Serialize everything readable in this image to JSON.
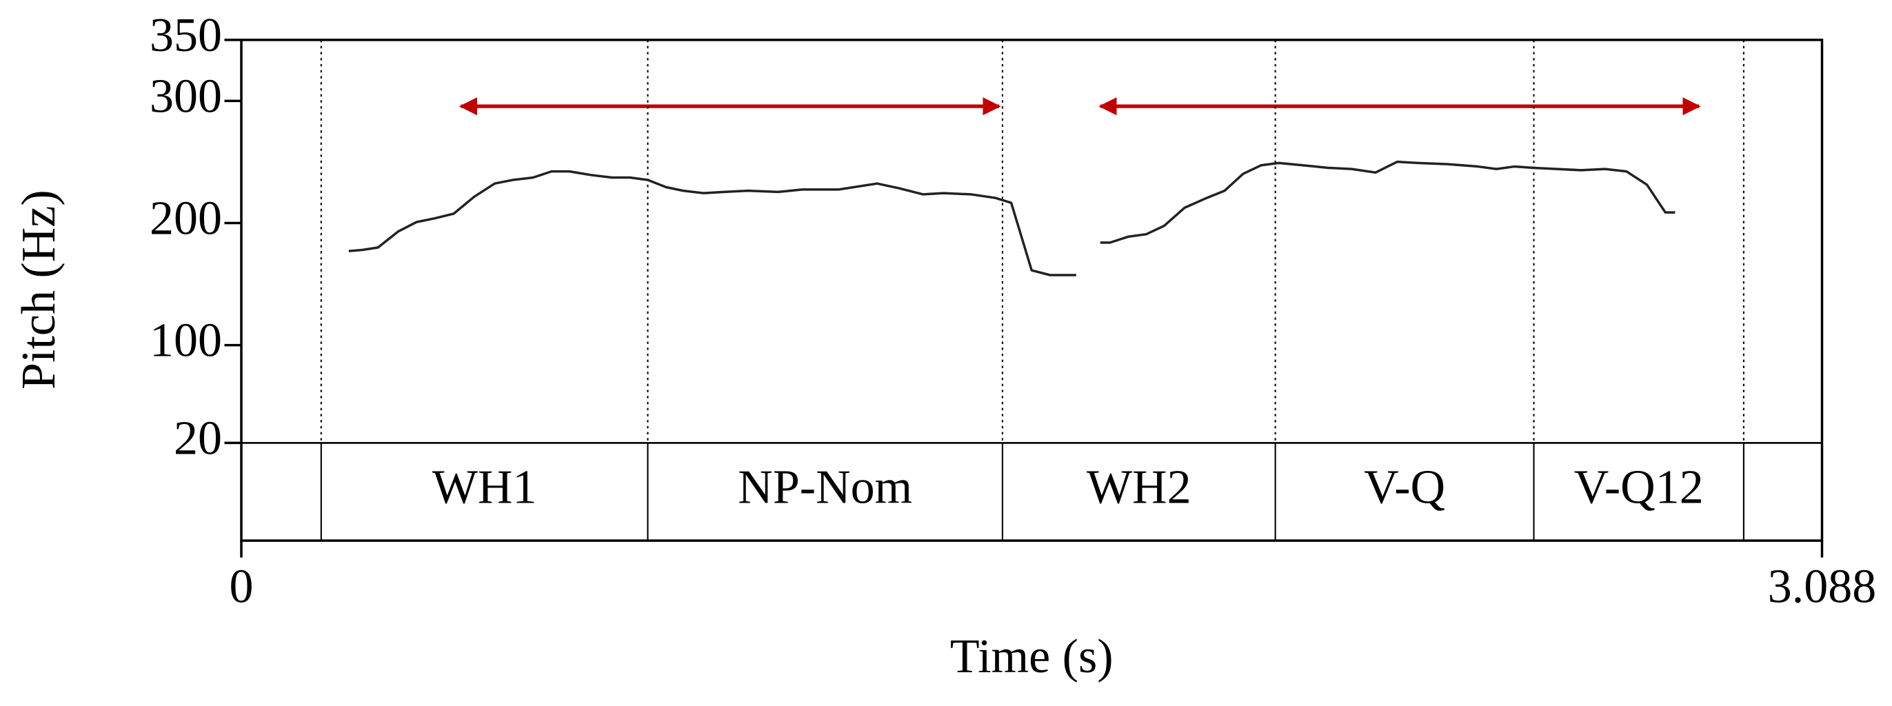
{
  "chart_data": {
    "type": "line",
    "x_label": "Time (s)",
    "y_label": "Pitch (Hz)",
    "xlim": [
      0,
      3.088
    ],
    "xticks": [
      0,
      3.088
    ],
    "ylim": [
      20,
      350
    ],
    "yticks": [
      20,
      100,
      200,
      300,
      350
    ],
    "x": [
      0.21,
      0.236,
      0.267,
      0.306,
      0.342,
      0.377,
      0.415,
      0.455,
      0.495,
      0.53,
      0.57,
      0.606,
      0.641,
      0.684,
      0.724,
      0.759,
      0.794,
      0.83,
      0.863,
      0.903,
      0.943,
      0.99,
      1.049,
      1.096,
      1.167,
      1.242,
      1.285,
      1.332,
      1.372,
      1.426,
      1.473,
      1.504,
      1.544,
      1.58,
      1.631,
      1.655,
      1.678,
      1.697,
      1.733,
      1.768,
      1.803,
      1.843,
      1.886,
      1.921,
      1.957,
      1.992,
      2.027,
      2.074,
      2.122,
      2.169,
      2.216,
      2.258,
      2.298,
      2.357,
      2.416,
      2.452,
      2.487,
      2.522,
      2.57,
      2.617,
      2.664,
      2.706,
      2.746,
      2.782,
      2.801
    ],
    "series": [
      {
        "color": "#222222",
        "values": [
          177.1,
          178.0,
          180.0,
          193.0,
          200.8,
          203.8,
          207.7,
          221.6,
          232.4,
          235.3,
          237.3,
          242.3,
          242.3,
          239.3,
          237.3,
          237.3,
          235.3,
          229.4,
          226.5,
          224.5,
          225.5,
          226.5,
          225.5,
          227.5,
          227.5,
          232.4,
          228.5,
          223.5,
          224.5,
          223.5,
          220.6,
          216.6,
          161.3,
          157.4,
          157.4,
          null,
          184.0,
          184.0,
          188.9,
          190.9,
          197.8,
          212.6,
          220.6,
          226.5,
          240.3,
          247.3,
          249.2,
          247.3,
          245.3,
          244.3,
          241.4,
          250.2,
          249.2,
          248.2,
          246.3,
          244.3,
          246.3,
          245.3,
          244.3,
          243.3,
          244.3,
          242.3,
          231.4,
          208.7,
          208.7
        ]
      }
    ],
    "tier": {
      "boundaries": [
        0.156,
        0.794,
        1.487,
        2.02,
        2.525,
        2.935
      ],
      "labels": [
        "WH1",
        "NP-Nom",
        "WH2",
        "V-Q",
        "V-Q12"
      ]
    }
  }
}
